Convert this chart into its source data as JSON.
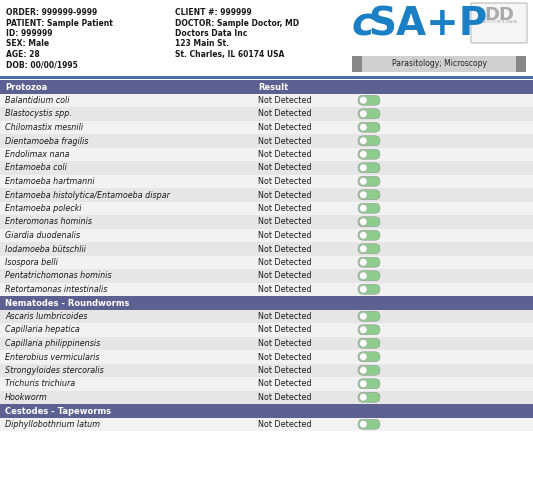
{
  "fig_w": 5.33,
  "fig_h": 5.04,
  "dpi": 100,
  "header_left": [
    "ORDER: 999999-9999",
    "PATIENT: Sample Patient",
    "ID: 999999",
    "SEX: Male",
    "AGE: 28",
    "DOB: 00/00/1995"
  ],
  "header_right": [
    "CLIENT #: 999999",
    "DOCTOR: Sample Doctor, MD",
    "Doctors Data Inc",
    "123 Main St.",
    "St. Charles, IL 60174 USA"
  ],
  "parasitology_label": "Parasitology; Microscopy",
  "section_color": "#5c6191",
  "row_colors": [
    "#f2f2f2",
    "#e6e6e6"
  ],
  "toggle_green": "#8dcc8d",
  "blue_line_color": "#4a6fa5",
  "sections": [
    {
      "title": "Protozoa",
      "show_result_header": true,
      "items": [
        "Balantidium coli",
        "Blastocystis spp.",
        "Chilomastix mesnili",
        "Dientamoeba fragilis",
        "Endolimax nana",
        "Entamoeba coli",
        "Entamoeba hartmanni",
        "Entamoeba histolytica/Entamoeba dispar",
        "Entamoeba polecki",
        "Enteromonas hominis",
        "Giardia duodenalis",
        "Iodamoeba bütschlii",
        "Isospora belli",
        "Pentatrichomonas hominis",
        "Retortamonas intestinalis"
      ]
    },
    {
      "title": "Nematodes - Roundworms",
      "show_result_header": false,
      "items": [
        "Ascaris lumbricoides",
        "Capillaria hepatica",
        "Capillaria philippinensis",
        "Enterobius vermicularis",
        "Strongyloides stercoralis",
        "Trichuris trichiura",
        "Hookworm"
      ]
    },
    {
      "title": "Cestodes - Tapeworms",
      "show_result_header": false,
      "items": [
        "Diphyllobothrium latum"
      ]
    }
  ]
}
